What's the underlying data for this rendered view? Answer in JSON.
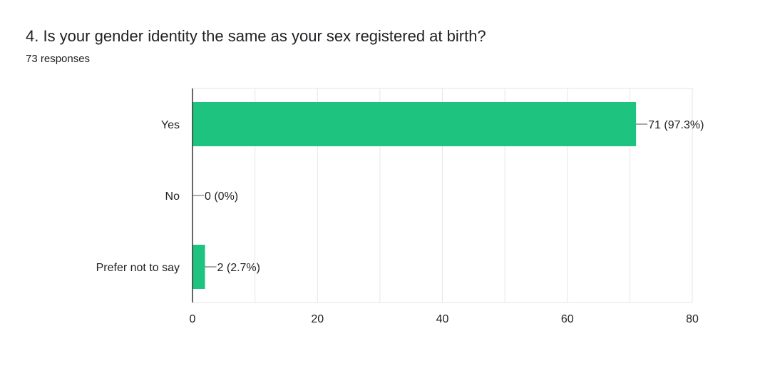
{
  "question": {
    "title": "4. Is your gender identity the same as your sex registered at birth?",
    "response_count": "73 responses"
  },
  "chart_data": {
    "type": "bar",
    "orientation": "horizontal",
    "categories": [
      "Yes",
      "No",
      "Prefer not to say"
    ],
    "values": [
      71,
      0,
      2
    ],
    "value_labels": [
      "71 (97.3%)",
      "0 (0%)",
      "2 (2.7%)"
    ],
    "xlim": [
      0,
      80
    ],
    "x_ticks": [
      0,
      20,
      40,
      60,
      80
    ],
    "grid": true,
    "bar_color": "#1dc37f"
  }
}
